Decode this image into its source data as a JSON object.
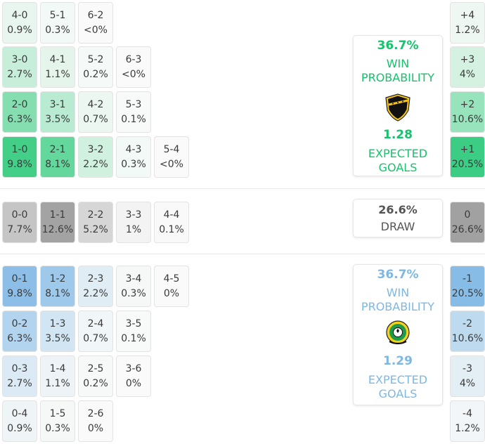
{
  "colors": {
    "home_accent": "#16c26b",
    "away_accent": "#7eb8e2",
    "draw_accent": "#7a7a7a"
  },
  "home_card": {
    "win_pct": "36.7%",
    "win_label_1": "WIN",
    "win_label_2": "PROBABILITY",
    "crest_icon": "nac-breda-crest",
    "xg_value": "1.28",
    "xg_label_1": "EXPECTED",
    "xg_label_2": "GOALS"
  },
  "draw_card": {
    "pct": "26.6%",
    "label": "DRAW"
  },
  "away_card": {
    "win_pct": "36.7%",
    "win_label_1": "WIN",
    "win_label_2": "PROBABILITY",
    "crest_icon": "fortuna-sittard-crest",
    "xg_value": "1.29",
    "xg_label_1": "EXPECTED",
    "xg_label_2": "GOALS"
  },
  "chart_data": {
    "type": "heatmap",
    "home_scores": [
      [
        "4-0",
        "0.9%"
      ],
      [
        "5-1",
        "0.3%"
      ],
      [
        "6-2",
        "<0%"
      ],
      [
        "3-0",
        "2.7%"
      ],
      [
        "4-1",
        "1.1%"
      ],
      [
        "5-2",
        "0.2%"
      ],
      [
        "6-3",
        "<0%"
      ],
      [
        "2-0",
        "6.3%"
      ],
      [
        "3-1",
        "3.5%"
      ],
      [
        "4-2",
        "0.7%"
      ],
      [
        "5-3",
        "0.1%"
      ],
      [
        "1-0",
        "9.8%"
      ],
      [
        "2-1",
        "8.1%"
      ],
      [
        "3-2",
        "2.2%"
      ],
      [
        "4-3",
        "0.3%"
      ],
      [
        "5-4",
        "<0%"
      ]
    ],
    "draw_scores": [
      [
        "0-0",
        "7.7%"
      ],
      [
        "1-1",
        "12.6%"
      ],
      [
        "2-2",
        "5.2%"
      ],
      [
        "3-3",
        "1%"
      ],
      [
        "4-4",
        "0.1%"
      ]
    ],
    "away_scores": [
      [
        "0-1",
        "9.8%"
      ],
      [
        "1-2",
        "8.1%"
      ],
      [
        "2-3",
        "2.2%"
      ],
      [
        "3-4",
        "0.3%"
      ],
      [
        "4-5",
        "0%"
      ],
      [
        "0-2",
        "6.3%"
      ],
      [
        "1-3",
        "3.5%"
      ],
      [
        "2-4",
        "0.7%"
      ],
      [
        "3-5",
        "0.1%"
      ],
      [
        "0-3",
        "2.7%"
      ],
      [
        "1-4",
        "1.1%"
      ],
      [
        "2-5",
        "0.2%"
      ],
      [
        "3-6",
        "0%"
      ],
      [
        "0-4",
        "0.9%"
      ],
      [
        "1-5",
        "0.3%"
      ],
      [
        "2-6",
        "0%"
      ]
    ],
    "goal_difference": [
      [
        "+4",
        "1.2%"
      ],
      [
        "+3",
        "4%"
      ],
      [
        "+2",
        "10.6%"
      ],
      [
        "+1",
        "20.5%"
      ],
      [
        "0",
        "26.6%"
      ],
      [
        "-1",
        "20.5%"
      ],
      [
        "-2",
        "10.6%"
      ],
      [
        "-3",
        "4%"
      ],
      [
        "-4",
        "1.2%"
      ]
    ]
  }
}
